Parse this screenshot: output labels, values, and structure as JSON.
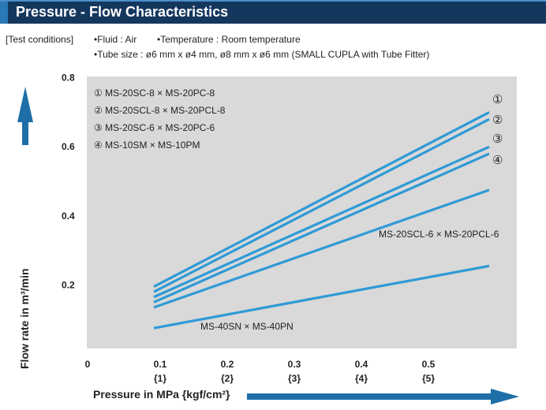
{
  "header": {
    "title": "Pressure - Flow Characteristics"
  },
  "conditions": {
    "label": "[Test conditions]",
    "fluid": "•Fluid : Air",
    "temperature": "•Temperature : Room temperature",
    "tube_size": "•Tube size : ø6 mm x ø4 mm, ø8 mm x ø6 mm (SMALL CUPLA with Tube Fitter)"
  },
  "chart_data": {
    "type": "line",
    "title": "Pressure - Flow Characteristics",
    "xlabel": "Pressure in MPa {kgf/cm²}",
    "ylabel": "Flow rate in m³/min",
    "xlim": [
      0,
      0.6
    ],
    "ylim": [
      0,
      0.8
    ],
    "x_ticks": [
      "0",
      "0.1",
      "0.2",
      "0.3",
      "0.4",
      "0.5"
    ],
    "x_ticks_sub": [
      "",
      "{1}",
      "{2}",
      "{3}",
      "{4}",
      "{5}"
    ],
    "y_ticks": [
      "0.2",
      "0.4",
      "0.6",
      "0.8"
    ],
    "grid": false,
    "legend_position": "top-left",
    "line_color": "#2f9ad6",
    "series": [
      {
        "marker": "①",
        "name": "MS-20SC-8 × MS-20PC-8",
        "x": [
          0.1,
          0.6
        ],
        "y": [
          0.195,
          0.7
        ]
      },
      {
        "marker": "②",
        "name": "MS-20SCL-8 × MS-20PCL-8",
        "x": [
          0.1,
          0.6
        ],
        "y": [
          0.18,
          0.68
        ]
      },
      {
        "marker": "③",
        "name": "MS-20SC-6 × MS-20PC-6",
        "x": [
          0.1,
          0.6
        ],
        "y": [
          0.165,
          0.6
        ]
      },
      {
        "marker": "④",
        "name": "MS-10SM × MS-10PM",
        "x": [
          0.1,
          0.6
        ],
        "y": [
          0.15,
          0.58
        ]
      },
      {
        "name": "MS-20SCL-6 × MS-20PCL-6",
        "x": [
          0.1,
          0.6
        ],
        "y": [
          0.135,
          0.475
        ]
      },
      {
        "name": "MS-40SN × MS-40PN",
        "x": [
          0.1,
          0.6
        ],
        "y": [
          0.075,
          0.255
        ]
      }
    ]
  }
}
